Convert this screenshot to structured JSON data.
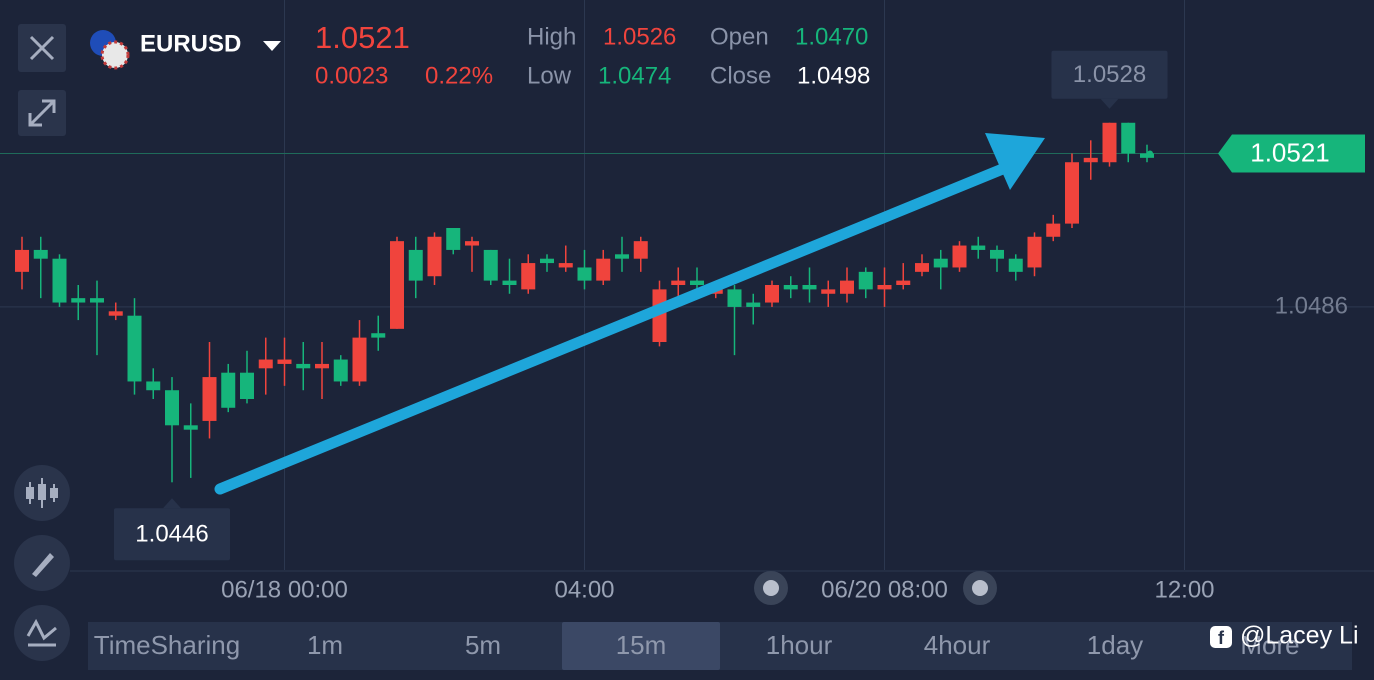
{
  "header": {
    "symbol": "EURUSD",
    "price": "1.0521",
    "change": "0.0023",
    "change_pct": "0.22%",
    "high_label": "High",
    "high": "1.0526",
    "open_label": "Open",
    "open": "1.0470",
    "low_label": "Low",
    "low": "1.0474",
    "close_label": "Close",
    "close": "1.0498"
  },
  "chart_data": {
    "type": "candlestick",
    "categories": [
      null,
      null,
      null,
      null,
      null,
      null,
      null,
      null,
      null,
      null,
      null,
      null,
      null,
      null,
      "06/18 00:00",
      null,
      null,
      null,
      null,
      null,
      null,
      null,
      null,
      null,
      null,
      null,
      null,
      null,
      null,
      null,
      "04:00",
      null,
      null,
      null,
      null,
      null,
      null,
      null,
      null,
      null,
      null,
      null,
      null,
      null,
      null,
      null,
      "06/20 08:00",
      null,
      null,
      null,
      null,
      null,
      null,
      null,
      null,
      null,
      null,
      null,
      null,
      null,
      null,
      null,
      "12:00"
    ],
    "open": [
      1.0494,
      1.0499,
      1.0497,
      1.0488,
      1.0488,
      1.0484,
      1.0484,
      1.0469,
      1.0467,
      1.0459,
      1.046,
      1.0471,
      1.0471,
      1.0472,
      1.0473,
      1.0473,
      1.0472,
      1.0474,
      1.0469,
      1.048,
      1.0481,
      1.0499,
      1.0493,
      1.0504,
      1.05,
      1.0499,
      1.0492,
      1.049,
      1.0497,
      1.0495,
      1.0495,
      1.0492,
      1.0498,
      1.0497,
      1.0478,
      1.0491,
      1.0492,
      1.0489,
      1.049,
      1.0487,
      1.0487,
      1.0491,
      1.0491,
      1.0489,
      1.0489,
      1.0494,
      1.049,
      1.0491,
      1.0494,
      1.0497,
      1.0495,
      1.05,
      1.0499,
      1.0497,
      1.0495,
      1.0502,
      1.0505,
      1.0519,
      1.0519,
      1.0528,
      1.0521,
      null,
      null
    ],
    "high": [
      1.0502,
      1.0502,
      1.0498,
      1.0491,
      1.0492,
      1.0487,
      1.0488,
      1.0472,
      1.047,
      1.0464,
      1.0478,
      1.0473,
      1.0476,
      1.0479,
      1.0479,
      1.0478,
      1.0478,
      1.0475,
      1.0483,
      1.0484,
      1.0502,
      1.0502,
      1.0503,
      1.0504,
      1.0502,
      1.0499,
      1.0497,
      1.0498,
      1.0498,
      1.05,
      1.0499,
      1.0499,
      1.0502,
      1.0502,
      1.0492,
      1.0495,
      1.0495,
      1.0492,
      1.0491,
      1.0489,
      1.0492,
      1.0493,
      1.0495,
      1.0492,
      1.0495,
      1.0495,
      1.0495,
      1.0496,
      1.0498,
      1.0499,
      1.0501,
      1.0502,
      1.05,
      1.0498,
      1.0503,
      1.0507,
      1.0521,
      1.0524,
      1.0528,
      1.0528,
      1.0523,
      null,
      null
    ],
    "low": [
      1.049,
      1.0488,
      1.0486,
      1.0483,
      1.0475,
      1.0483,
      1.0466,
      1.0465,
      1.0446,
      1.0447,
      1.0456,
      1.0462,
      1.0464,
      1.0466,
      1.0468,
      1.0467,
      1.0465,
      1.0468,
      1.0468,
      1.0476,
      1.0481,
      1.0488,
      1.0491,
      1.0498,
      1.0494,
      1.0491,
      1.0489,
      1.0489,
      1.0494,
      1.0494,
      1.049,
      1.0491,
      1.0494,
      1.0494,
      1.0477,
      1.0488,
      1.0488,
      1.0488,
      1.0475,
      1.0482,
      1.0486,
      1.0488,
      1.0487,
      1.0486,
      1.0487,
      1.0488,
      1.0486,
      1.049,
      1.0493,
      1.049,
      1.0494,
      1.0497,
      1.0494,
      1.0492,
      1.0493,
      1.0501,
      1.0504,
      1.0515,
      1.0518,
      1.0519,
      1.0519,
      null,
      null
    ],
    "close": [
      1.0499,
      1.0497,
      1.0487,
      1.0487,
      1.0487,
      1.0485,
      1.0469,
      1.0467,
      1.0459,
      1.0458,
      1.047,
      1.0463,
      1.0465,
      1.0474,
      1.0474,
      1.0472,
      1.0473,
      1.0469,
      1.0479,
      1.0479,
      1.0501,
      1.0492,
      1.0502,
      1.0499,
      1.0501,
      1.0492,
      1.0491,
      1.0496,
      1.0496,
      1.0496,
      1.0492,
      1.0497,
      1.0497,
      1.0501,
      1.049,
      1.0492,
      1.0491,
      1.049,
      1.0486,
      1.0486,
      1.0491,
      1.049,
      1.049,
      1.049,
      1.0492,
      1.049,
      1.0491,
      1.0492,
      1.0496,
      1.0495,
      1.05,
      1.0499,
      1.0497,
      1.0494,
      1.0502,
      1.0505,
      1.0519,
      1.052,
      1.0528,
      1.0521,
      1.052,
      null,
      null
    ],
    "up_color": "#f0443d",
    "down_color": "#16b57b",
    "ylim": [
      1.0426,
      1.0556
    ],
    "yticks": [
      1.0486
    ],
    "grid": true,
    "last_price": 1.0521,
    "high_marker": 1.0528,
    "low_marker": 1.0446
  },
  "timeframes": [
    "TimeSharing",
    "1m",
    "5m",
    "15m",
    "1hour",
    "4hour",
    "1day",
    "More"
  ],
  "watermark": "@Lacey Li"
}
